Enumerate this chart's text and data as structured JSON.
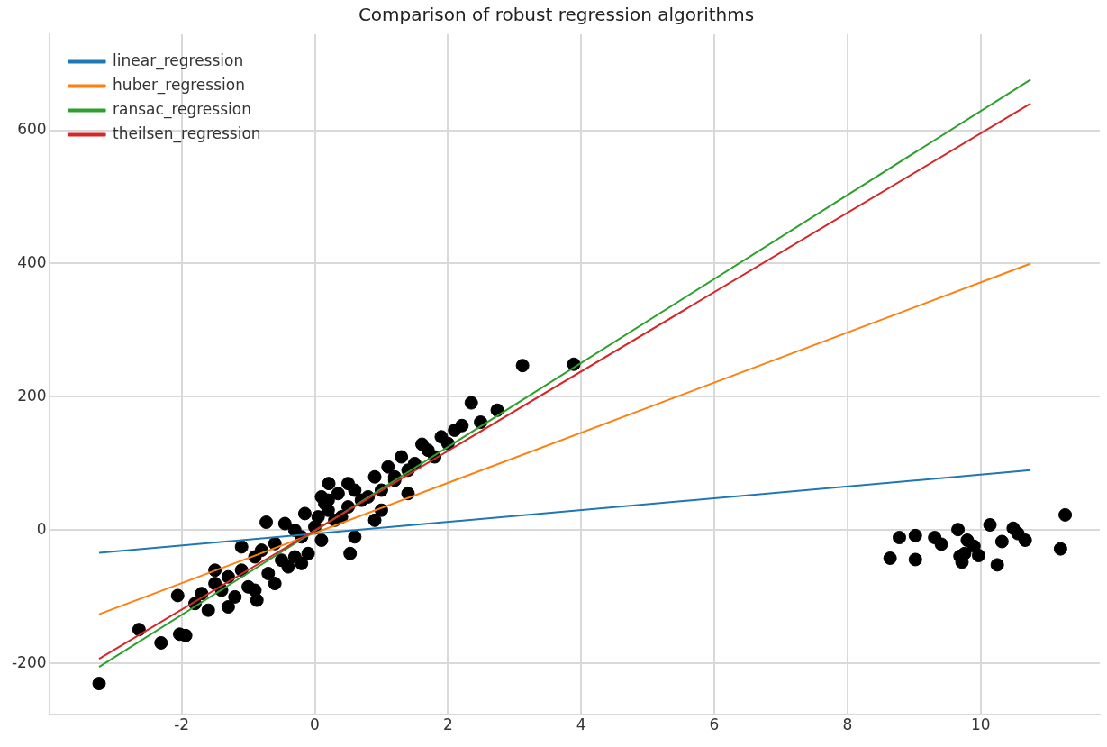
{
  "chart_data": {
    "type": "scatter",
    "title": "Comparison of robust regression algorithms",
    "xlim": [
      -3.99,
      11.79
    ],
    "ylim": [
      -276,
      744
    ],
    "xticks": [
      -2,
      0,
      2,
      4,
      6,
      8,
      10
    ],
    "yticks": [
      -200,
      0,
      200,
      400,
      600
    ],
    "grid": true,
    "legend": "top left",
    "series": [
      {
        "color": "#000000",
        "marker": "circle",
        "x": [
          -3.24,
          -2.64,
          -2.31,
          -2.03,
          -1.94,
          -2.06,
          -1.8,
          -1.7,
          -1.6,
          -1.5,
          -1.4,
          -1.3,
          -1.2,
          -1.1,
          -1.0,
          -0.9,
          -0.87,
          -0.8,
          -0.73,
          -0.7,
          -0.6,
          -0.5,
          -0.45,
          -0.4,
          -0.3,
          -0.2,
          -0.15,
          -0.1,
          0.0,
          0.05,
          0.1,
          0.15,
          0.2,
          0.21,
          0.3,
          0.35,
          0.4,
          0.5,
          0.53,
          0.6,
          0.7,
          0.8,
          0.9,
          1.0,
          1.1,
          1.2,
          1.3,
          1.4,
          1.5,
          1.61,
          1.7,
          1.8,
          1.9,
          2.0,
          2.1,
          2.21,
          2.35,
          2.49,
          2.74,
          3.12,
          3.89,
          -1.5,
          -1.1,
          -0.6,
          -0.2,
          0.2,
          0.6,
          1.0,
          1.4,
          -1.3,
          -0.9,
          -0.3,
          0.1,
          0.5,
          0.9,
          1.2,
          8.64,
          8.78,
          9.02,
          9.02,
          9.31,
          9.41,
          9.66,
          9.72,
          9.8,
          9.9,
          9.76,
          9.97,
          10.14,
          10.25,
          10.32,
          10.49,
          10.56,
          10.67,
          11.2,
          11.27,
          9.69
        ],
        "values": [
          -230,
          -149,
          -169,
          -156,
          -158,
          -98,
          -110,
          -95,
          -120,
          -80,
          -90,
          -70,
          -100,
          -60,
          -85,
          -40,
          -105,
          -30,
          12,
          -65,
          -20,
          -45,
          10,
          -55,
          0,
          -10,
          25,
          -35,
          5,
          20,
          -15,
          40,
          30,
          70,
          15,
          55,
          20,
          35,
          -35,
          60,
          45,
          50,
          80,
          60,
          95,
          75,
          110,
          90,
          100,
          129,
          120,
          110,
          140,
          130,
          150,
          157,
          191,
          162,
          180,
          247,
          249,
          -60,
          -25,
          -80,
          -50,
          45,
          -10,
          30,
          55,
          -115,
          -90,
          -40,
          50,
          70,
          15,
          80,
          -42,
          -11,
          -8,
          -44,
          -11,
          -21,
          1,
          -48,
          -15,
          -24,
          -35,
          -38,
          8,
          -52,
          -17,
          3,
          -5,
          -15,
          -28,
          23,
          -39
        ]
      },
      {
        "type": "line",
        "name": "linear_regression",
        "color": "#1f77b4",
        "x": [
          -3.24,
          10.75
        ],
        "values": [
          -34,
          90
        ]
      },
      {
        "type": "line",
        "name": "huber_regression",
        "color": "#ff7f0e",
        "x": [
          -3.24,
          10.75
        ],
        "values": [
          -126,
          400
        ]
      },
      {
        "type": "line",
        "name": "ransac_regression",
        "color": "#2ca02c",
        "x": [
          -3.24,
          10.75
        ],
        "values": [
          -205,
          676
        ]
      },
      {
        "type": "line",
        "name": "theilsen_regression",
        "color": "#d62728",
        "x": [
          -3.24,
          10.75
        ],
        "values": [
          -193,
          640
        ]
      }
    ]
  }
}
